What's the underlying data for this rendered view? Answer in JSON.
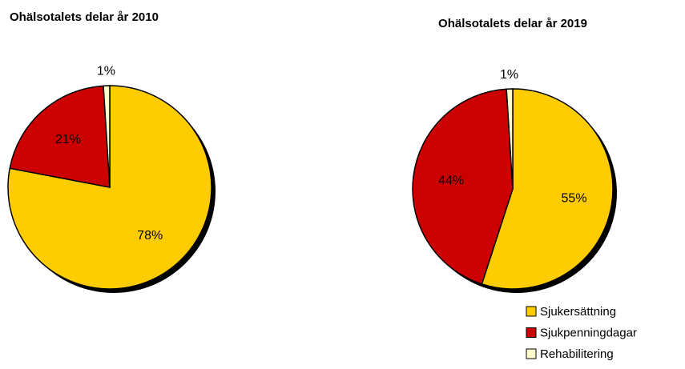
{
  "chart_data": [
    {
      "type": "pie",
      "title": "Ohälsotalets delar år 2010",
      "values": [
        78,
        21,
        1
      ],
      "value_labels": [
        "78%",
        "21%",
        "1%"
      ],
      "colors": [
        "#ffcc00",
        "#cc0000",
        "#ffffcc"
      ]
    },
    {
      "type": "pie",
      "title": "Ohälsotalets delar år 2019",
      "categories": [
        "Sjukersättning",
        "Sjukpenningdagar",
        "Rehabilitering"
      ],
      "values": [
        55,
        44,
        1
      ],
      "value_labels": [
        "55%",
        "44%",
        "1%"
      ],
      "colors": [
        "#ffcc00",
        "#cc0000",
        "#ffffcc"
      ],
      "legend": "bottom-right"
    }
  ]
}
